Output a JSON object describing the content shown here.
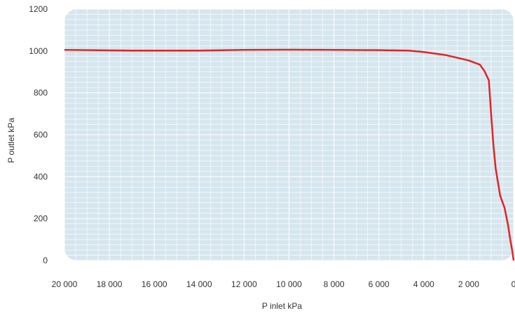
{
  "chart_data": {
    "type": "line",
    "title": "",
    "xlabel": "P inlet kPa",
    "ylabel": "P outlet kPa",
    "xlim": [
      20000,
      0
    ],
    "ylim": [
      0,
      1200
    ],
    "x_ticks": [
      20000,
      18000,
      16000,
      14000,
      12000,
      10000,
      8000,
      6000,
      4000,
      2000,
      0
    ],
    "x_tick_labels": [
      "20 000",
      "18 000",
      "16 000",
      "14 000",
      "12 000",
      "10 000",
      "8 000",
      "6 000",
      "4 000",
      "2 000",
      "0"
    ],
    "y_ticks": [
      0,
      200,
      400,
      600,
      800,
      1000,
      1200
    ],
    "y_tick_labels": [
      "0",
      "200",
      "400",
      "600",
      "800",
      "1000",
      "1200"
    ],
    "grid": true,
    "colors": {
      "plot_bg": "#d6e6ef",
      "grid": "#ffffff",
      "line": "#e32322"
    },
    "series": [
      {
        "x": [
          20000,
          17000,
          14000,
          12000,
          10000,
          8000,
          6000,
          4700,
          4000,
          3000,
          2000,
          1500,
          1300,
          1100,
          1000,
          900,
          800,
          600,
          400,
          250,
          150,
          50,
          0
        ],
        "y": [
          1005,
          1002,
          1002,
          1005,
          1006,
          1005,
          1004,
          1002,
          995,
          980,
          955,
          935,
          905,
          860,
          700,
          550,
          440,
          310,
          250,
          170,
          100,
          40,
          0
        ]
      }
    ]
  }
}
